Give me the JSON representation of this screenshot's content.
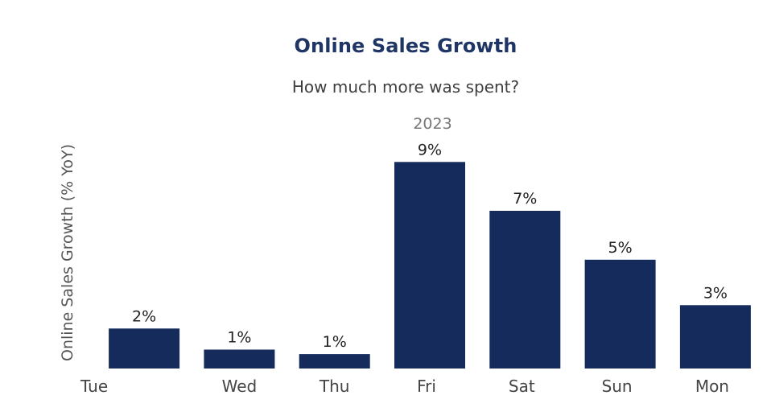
{
  "chart_data": {
    "type": "bar",
    "title": "Online Sales Growth",
    "subtitle": "How much more was spent?",
    "period_label": "2023",
    "xlabel": "",
    "ylabel": "Online Sales Growth (% YoY)",
    "categories": [
      "Tue",
      "Wed",
      "Thu",
      "Fri",
      "Sat",
      "Sun",
      "Mon"
    ],
    "values": [
      1.8,
      0.85,
      0.65,
      9.3,
      7.1,
      4.9,
      2.85
    ],
    "value_labels": [
      "2%",
      "1%",
      "1%",
      "9%",
      "7%",
      "5%",
      "3%"
    ],
    "ylim": [
      0,
      10
    ],
    "grid": false,
    "legend": "none",
    "bar_color": "#142b5c",
    "title_color": "#1f3566"
  }
}
